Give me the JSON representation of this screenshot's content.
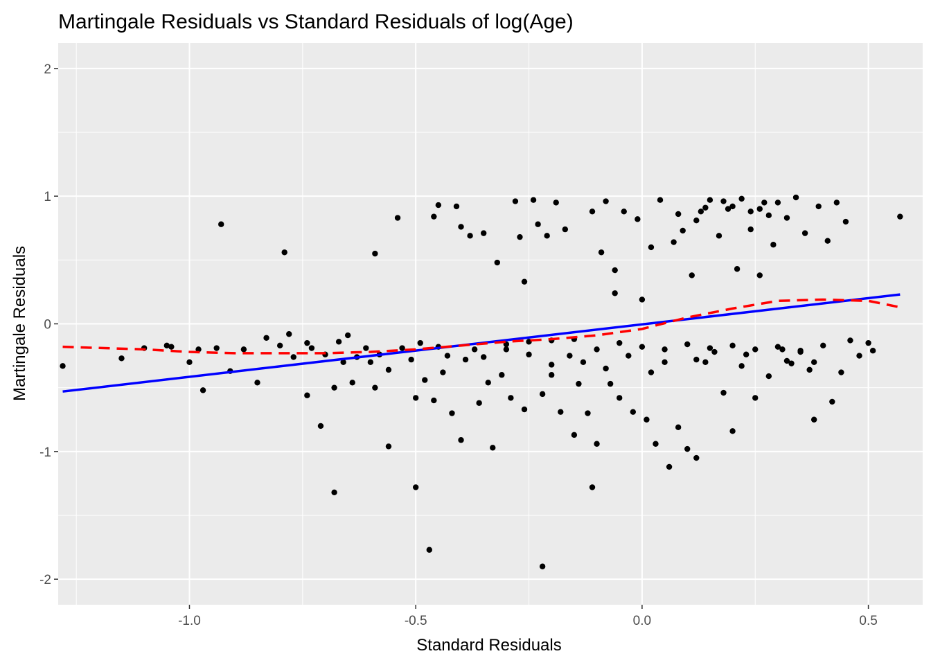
{
  "chart_data": {
    "type": "scatter",
    "title": "Martingale Residuals vs Standard Residuals of log(Age)",
    "xlabel": "Standard Residuals",
    "ylabel": "Martingale Residuals",
    "xlim": [
      -1.29,
      0.62
    ],
    "ylim": [
      -2.2,
      2.2
    ],
    "x_ticks": [
      -1.0,
      -0.5,
      0.0,
      0.5
    ],
    "x_tick_labels": [
      "-1.0",
      "-0.5",
      "0.0",
      "0.5"
    ],
    "y_ticks": [
      -2,
      -1,
      0,
      1,
      2
    ],
    "y_tick_labels": [
      "-2",
      "-1",
      "0",
      "1",
      "2"
    ],
    "grid": true,
    "legend": "none",
    "colors": {
      "panel": "#ebebeb",
      "grid_major": "#ffffff",
      "points": "#000000",
      "linear_fit": "#0000ff",
      "smooth_fit": "#ff0000"
    },
    "linear_fit": {
      "x": [
        -1.28,
        0.57
      ],
      "y": [
        -0.53,
        0.23
      ]
    },
    "smooth_fit": {
      "x": [
        -1.28,
        -1.1,
        -1.0,
        -0.9,
        -0.8,
        -0.7,
        -0.6,
        -0.5,
        -0.4,
        -0.3,
        -0.2,
        -0.1,
        0.0,
        0.1,
        0.2,
        0.3,
        0.4,
        0.5,
        0.57
      ],
      "y": [
        -0.18,
        -0.2,
        -0.22,
        -0.23,
        -0.23,
        -0.23,
        -0.22,
        -0.2,
        -0.17,
        -0.14,
        -0.12,
        -0.09,
        -0.04,
        0.05,
        0.12,
        0.18,
        0.19,
        0.18,
        0.13
      ]
    },
    "points": [
      [
        -1.28,
        -0.33
      ],
      [
        -1.15,
        -0.27
      ],
      [
        -1.1,
        -0.19
      ],
      [
        -1.05,
        -0.17
      ],
      [
        -1.04,
        -0.18
      ],
      [
        -1.0,
        -0.3
      ],
      [
        -0.98,
        -0.2
      ],
      [
        -0.97,
        -0.52
      ],
      [
        -0.94,
        -0.19
      ],
      [
        -0.93,
        0.78
      ],
      [
        -0.91,
        -0.37
      ],
      [
        -0.88,
        -0.2
      ],
      [
        -0.85,
        -0.46
      ],
      [
        -0.83,
        -0.11
      ],
      [
        -0.8,
        -0.17
      ],
      [
        -0.79,
        0.56
      ],
      [
        -0.78,
        -0.08
      ],
      [
        -0.77,
        -0.26
      ],
      [
        -0.74,
        -0.56
      ],
      [
        -0.74,
        -0.15
      ],
      [
        -0.73,
        -0.19
      ],
      [
        -0.71,
        -0.8
      ],
      [
        -0.7,
        -0.24
      ],
      [
        -0.68,
        -1.32
      ],
      [
        -0.68,
        -0.5
      ],
      [
        -0.67,
        -0.14
      ],
      [
        -0.66,
        -0.3
      ],
      [
        -0.65,
        -0.09
      ],
      [
        -0.64,
        -0.46
      ],
      [
        -0.63,
        -0.26
      ],
      [
        -0.61,
        -0.19
      ],
      [
        -0.6,
        -0.3
      ],
      [
        -0.59,
        0.55
      ],
      [
        -0.59,
        -0.5
      ],
      [
        -0.58,
        -0.24
      ],
      [
        -0.56,
        -0.96
      ],
      [
        -0.56,
        -0.36
      ],
      [
        -0.54,
        0.83
      ],
      [
        -0.53,
        -0.19
      ],
      [
        -0.51,
        -0.28
      ],
      [
        -0.5,
        -1.28
      ],
      [
        -0.5,
        -0.58
      ],
      [
        -0.49,
        -0.15
      ],
      [
        -0.48,
        -0.44
      ],
      [
        -0.47,
        -1.77
      ],
      [
        -0.46,
        0.84
      ],
      [
        -0.46,
        -0.6
      ],
      [
        -0.45,
        0.93
      ],
      [
        -0.44,
        -0.38
      ],
      [
        -0.43,
        -0.25
      ],
      [
        -0.42,
        -0.7
      ],
      [
        -0.41,
        0.92
      ],
      [
        -0.4,
        0.76
      ],
      [
        -0.4,
        -0.91
      ],
      [
        -0.39,
        -0.28
      ],
      [
        -0.38,
        0.69
      ],
      [
        -0.37,
        -0.2
      ],
      [
        -0.36,
        -0.62
      ],
      [
        -0.35,
        0.71
      ],
      [
        -0.34,
        -0.46
      ],
      [
        -0.33,
        -0.97
      ],
      [
        -0.32,
        0.48
      ],
      [
        -0.31,
        -0.4
      ],
      [
        -0.3,
        -0.2
      ],
      [
        -0.29,
        -0.58
      ],
      [
        -0.28,
        0.96
      ],
      [
        -0.27,
        0.68
      ],
      [
        -0.26,
        -0.67
      ],
      [
        -0.26,
        0.33
      ],
      [
        -0.25,
        -0.24
      ],
      [
        -0.24,
        0.97
      ],
      [
        -0.23,
        0.78
      ],
      [
        -0.22,
        -1.9
      ],
      [
        -0.22,
        -0.55
      ],
      [
        -0.21,
        0.69
      ],
      [
        -0.2,
        -0.4
      ],
      [
        -0.19,
        0.95
      ],
      [
        -0.18,
        -0.69
      ],
      [
        -0.17,
        0.74
      ],
      [
        -0.16,
        -0.25
      ],
      [
        -0.15,
        -0.87
      ],
      [
        -0.14,
        -0.47
      ],
      [
        -0.13,
        -0.3
      ],
      [
        -0.12,
        -0.7
      ],
      [
        -0.11,
        -1.28
      ],
      [
        -0.11,
        0.88
      ],
      [
        -0.1,
        -0.94
      ],
      [
        -0.09,
        0.56
      ],
      [
        -0.08,
        0.96
      ],
      [
        -0.07,
        -0.47
      ],
      [
        -0.06,
        0.42
      ],
      [
        -0.06,
        0.24
      ],
      [
        -0.05,
        -0.58
      ],
      [
        -0.04,
        0.88
      ],
      [
        -0.03,
        -0.25
      ],
      [
        -0.02,
        -0.69
      ],
      [
        -0.01,
        0.82
      ],
      [
        0.0,
        0.19
      ],
      [
        0.01,
        -0.75
      ],
      [
        0.02,
        0.6
      ],
      [
        0.03,
        -0.94
      ],
      [
        0.04,
        0.97
      ],
      [
        0.05,
        -0.3
      ],
      [
        0.06,
        -1.12
      ],
      [
        0.07,
        0.64
      ],
      [
        0.08,
        -0.81
      ],
      [
        0.09,
        0.73
      ],
      [
        0.1,
        -0.98
      ],
      [
        0.11,
        0.38
      ],
      [
        0.12,
        -1.05
      ],
      [
        0.13,
        0.88
      ],
      [
        0.14,
        -0.3
      ],
      [
        0.15,
        0.97
      ],
      [
        0.16,
        -0.22
      ],
      [
        0.17,
        0.69
      ],
      [
        0.18,
        -0.54
      ],
      [
        0.19,
        0.9
      ],
      [
        0.2,
        -0.84
      ],
      [
        0.21,
        0.43
      ],
      [
        0.22,
        0.98
      ],
      [
        0.23,
        -0.24
      ],
      [
        0.24,
        0.74
      ],
      [
        0.25,
        -0.58
      ],
      [
        0.26,
        0.38
      ],
      [
        0.27,
        0.95
      ],
      [
        0.28,
        -0.41
      ],
      [
        0.29,
        0.62
      ],
      [
        0.3,
        0.95
      ],
      [
        0.31,
        -0.2
      ],
      [
        0.32,
        0.83
      ],
      [
        0.33,
        -0.31
      ],
      [
        0.34,
        0.99
      ],
      [
        0.35,
        -0.22
      ],
      [
        0.36,
        0.71
      ],
      [
        0.37,
        -0.36
      ],
      [
        0.38,
        -0.75
      ],
      [
        0.39,
        0.92
      ],
      [
        0.4,
        -0.17
      ],
      [
        0.41,
        0.65
      ],
      [
        0.42,
        -0.61
      ],
      [
        0.43,
        0.95
      ],
      [
        0.44,
        -0.38
      ],
      [
        0.45,
        0.8
      ],
      [
        0.46,
        -0.13
      ],
      [
        0.48,
        -0.25
      ],
      [
        0.5,
        -0.15
      ],
      [
        0.51,
        -0.21
      ],
      [
        0.57,
        0.84
      ],
      [
        -0.3,
        -0.16
      ],
      [
        -0.25,
        -0.14
      ],
      [
        -0.2,
        -0.13
      ],
      [
        -0.15,
        -0.12
      ],
      [
        -0.1,
        -0.2
      ],
      [
        -0.05,
        -0.15
      ],
      [
        0.0,
        -0.18
      ],
      [
        0.05,
        -0.2
      ],
      [
        0.1,
        -0.16
      ],
      [
        0.15,
        -0.19
      ],
      [
        0.2,
        -0.17
      ],
      [
        0.25,
        -0.2
      ],
      [
        0.3,
        -0.18
      ],
      [
        0.35,
        -0.21
      ],
      [
        -0.35,
        -0.26
      ],
      [
        -0.2,
        -0.32
      ],
      [
        -0.08,
        -0.35
      ],
      [
        0.02,
        -0.38
      ],
      [
        0.12,
        -0.28
      ],
      [
        0.22,
        -0.33
      ],
      [
        0.32,
        -0.29
      ],
      [
        -0.45,
        -0.18
      ],
      [
        0.38,
        -0.3
      ],
      [
        0.26,
        0.9
      ],
      [
        0.2,
        0.92
      ],
      [
        0.14,
        0.91
      ],
      [
        0.18,
        0.96
      ],
      [
        0.24,
        0.88
      ],
      [
        0.28,
        0.85
      ],
      [
        0.12,
        0.81
      ],
      [
        0.08,
        0.86
      ]
    ]
  }
}
